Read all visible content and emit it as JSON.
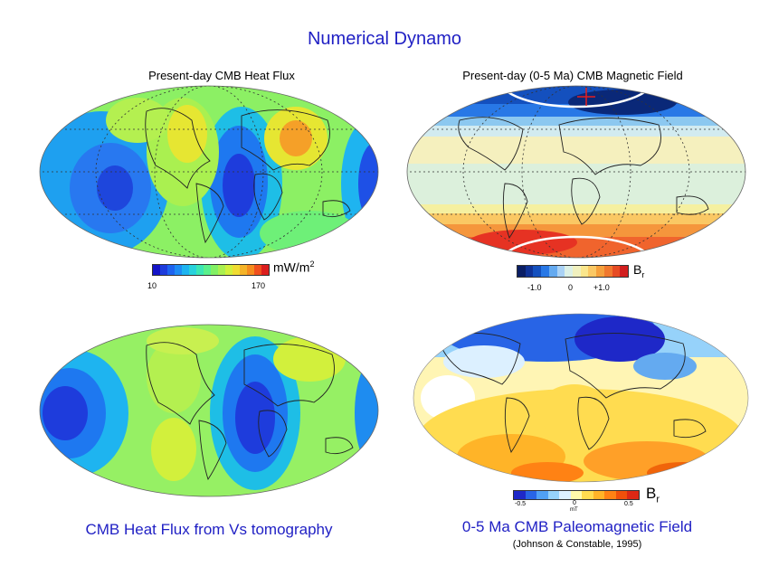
{
  "title": "Numerical Dynamo",
  "panels": {
    "heat_flux": {
      "title": "Present-day CMB Heat Flux",
      "colorbar_unit": "mW/m",
      "colorbar_unit_sup": "2",
      "tick_min": "10",
      "tick_max": "170"
    },
    "magnetic_field": {
      "title": "Present-day (0-5 Ma) CMB Magnetic Field",
      "colorbar_unit": "B",
      "colorbar_unit_sub": "r",
      "ticks": [
        "-1.0",
        "0",
        "+1.0"
      ]
    },
    "tomography": {
      "caption": "CMB Heat Flux from Vs tomography"
    },
    "paleomagnetic": {
      "caption": "0-5 Ma CMB Paleomagnetic Field",
      "citation": "(Johnson & Constable, 1995)",
      "colorbar_unit": "B",
      "colorbar_unit_sub": "r",
      "ticks": [
        "-0.5",
        "0",
        "0.5"
      ],
      "tick_unit": "mT"
    }
  },
  "colors": {
    "title_blue": "#1f1fc4",
    "heat_scale": [
      "#1414c8",
      "#1e3cdc",
      "#1e64f0",
      "#1e8cf5",
      "#1eb4f0",
      "#28d2dc",
      "#3ce6b4",
      "#5af08c",
      "#82f064",
      "#aaf050",
      "#d2f03c",
      "#f0dc32",
      "#f5b428",
      "#f58c1e",
      "#f0501e",
      "#dc1e1e"
    ],
    "field_scale": [
      "#0a1e64",
      "#0f3296",
      "#1450be",
      "#2878e6",
      "#64aaf0",
      "#aad2f5",
      "#dcf0e6",
      "#f0f0be",
      "#fae68c",
      "#fac864",
      "#f5a03c",
      "#f0782d",
      "#e64b23",
      "#d21e1e"
    ],
    "paleo_scale": [
      "#1e28c8",
      "#2864e6",
      "#50a0f5",
      "#96d2fa",
      "#dcf0ff",
      "#fffaaa",
      "#ffdc50",
      "#ffb428",
      "#ff8214",
      "#f0500a",
      "#dc2814"
    ]
  }
}
